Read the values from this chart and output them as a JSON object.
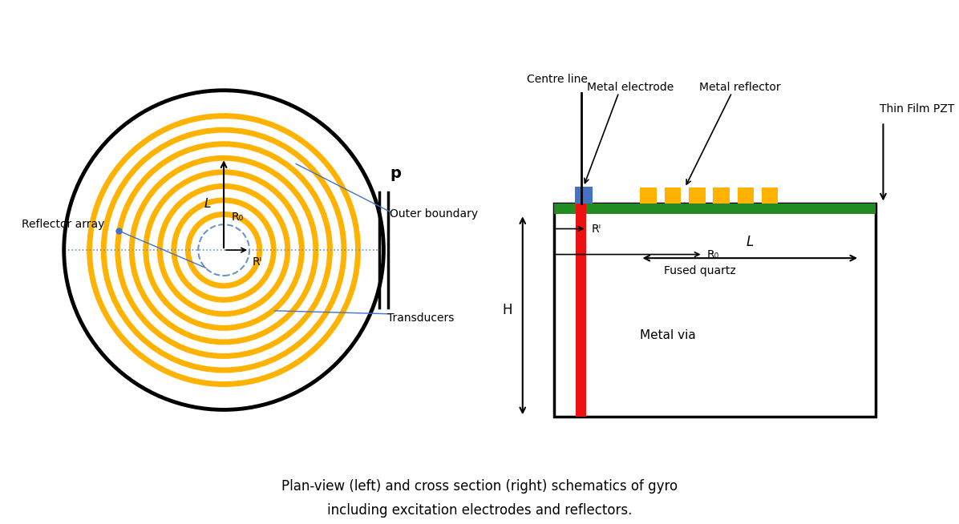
{
  "bg_color": "#ffffff",
  "gold_color": "#FFB300",
  "black_color": "#000000",
  "blue_color": "#4472C4",
  "red_color": "#EE1111",
  "green_color": "#228B22",
  "dashed_blue": "#6699BB",
  "caption_line1": "Plan-view (left) and cross section (right) schematics of gyro",
  "caption_line2": "including excitation electrodes and reflectors.",
  "left_labels": {
    "L": "L",
    "R0": "R₀",
    "Ri": "Rᴵ",
    "p": "p",
    "reflector_array": "Reflector array",
    "outer_boundary": "Outer boundary",
    "transducers": "Transducers"
  },
  "right_labels": {
    "centre_line": "Centre line",
    "metal_electrode": "Metal electrode",
    "metal_reflector": "Metal reflector",
    "R1": "Rᴵ",
    "R0": "R₀",
    "L": "L",
    "H": "H",
    "fused_quartz": "Fused quartz",
    "metal_via": "Metal via",
    "thin_film_pzt": "Thin Film PZT"
  }
}
